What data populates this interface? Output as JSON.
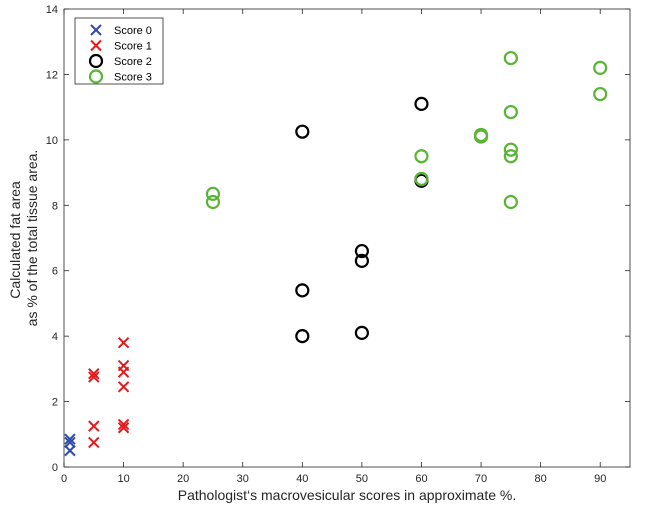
{
  "chart_data": {
    "type": "scatter",
    "xlabel": "Pathologist‘s macrovesicular scores in approximate %.",
    "ylabel_lines": [
      "Calculated fat area",
      "as % of the total tissue area."
    ],
    "xlim": [
      0,
      95
    ],
    "ylim": [
      0,
      14
    ],
    "x_ticks": [
      0,
      10,
      20,
      30,
      40,
      50,
      60,
      70,
      80,
      90
    ],
    "y_ticks": [
      0,
      2,
      4,
      6,
      8,
      10,
      12,
      14
    ],
    "grid": false,
    "legend_position": "top-left",
    "series": [
      {
        "name": "Score 0",
        "marker": "x",
        "color": "#2e4bab",
        "points": [
          [
            1,
            0.85
          ],
          [
            1,
            0.75
          ],
          [
            1,
            0.5
          ]
        ]
      },
      {
        "name": "Score 1",
        "marker": "x",
        "color": "#e31a1c",
        "points": [
          [
            5,
            2.85
          ],
          [
            5,
            2.75
          ],
          [
            5,
            1.25
          ],
          [
            5,
            0.75
          ],
          [
            10,
            3.8
          ],
          [
            10,
            3.1
          ],
          [
            10,
            2.9
          ],
          [
            10,
            2.45
          ],
          [
            10,
            1.3
          ],
          [
            10,
            1.2
          ]
        ]
      },
      {
        "name": "Score 2",
        "marker": "o",
        "color": "#000000",
        "points": [
          [
            40,
            10.25
          ],
          [
            40,
            5.4
          ],
          [
            40,
            4.0
          ],
          [
            50,
            6.6
          ],
          [
            50,
            6.3
          ],
          [
            50,
            4.1
          ],
          [
            60,
            11.1
          ],
          [
            60,
            8.8
          ],
          [
            60,
            8.75
          ]
        ]
      },
      {
        "name": "Score 3",
        "marker": "o",
        "color": "#5ab534",
        "points": [
          [
            25,
            8.35
          ],
          [
            25,
            8.1
          ],
          [
            60,
            9.5
          ],
          [
            60,
            8.8
          ],
          [
            70,
            10.15
          ],
          [
            70,
            10.1
          ],
          [
            75,
            12.5
          ],
          [
            75,
            10.85
          ],
          [
            75,
            9.7
          ],
          [
            75,
            9.5
          ],
          [
            75,
            8.1
          ],
          [
            90,
            12.2
          ],
          [
            90,
            11.4
          ]
        ]
      }
    ]
  }
}
